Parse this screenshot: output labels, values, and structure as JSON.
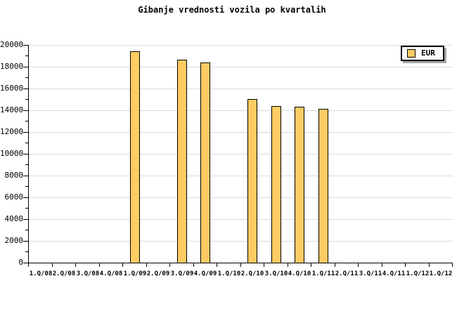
{
  "chart_data": {
    "type": "bar",
    "title": "Gibanje vrednosti vozila po kvartalih",
    "xlabel": "",
    "ylabel": "",
    "categories": [
      "1.Q/08",
      "2.Q/08",
      "3.Q/08",
      "4.Q/08",
      "1.Q/09",
      "2.Q/09",
      "3.Q/09",
      "4.Q/09",
      "1.Q/10",
      "2.Q/10",
      "3.Q/10",
      "4.Q/10",
      "1.Q/11",
      "2.Q/11",
      "3.Q/11",
      "4.Q/11",
      "1.Q/12",
      "1.Q/12"
    ],
    "series": [
      {
        "name": "EUR",
        "values": [
          null,
          null,
          null,
          null,
          19400,
          null,
          18650,
          18400,
          null,
          15050,
          14400,
          14350,
          14150,
          null,
          null,
          null,
          null,
          null
        ]
      }
    ],
    "ylim": [
      0,
      20000
    ],
    "y_major_step": 2000,
    "y_minor_step": 1000,
    "y_tick_labels": [
      "0",
      "2000",
      "4000",
      "6000",
      "8000",
      "10000",
      "12000",
      "14000",
      "16000",
      "18000",
      "20000"
    ],
    "grid": true,
    "legend": {
      "position": "top-right",
      "entries": [
        {
          "label": "EUR",
          "color": "#ffcb63"
        }
      ]
    },
    "colors": {
      "bar_fill": "#ffcb63",
      "bar_border": "#000000",
      "gridline": "#dbdbdb",
      "axis": "#000000",
      "background": "#ffffff",
      "legend_shadow": "#a6a6a6"
    }
  }
}
